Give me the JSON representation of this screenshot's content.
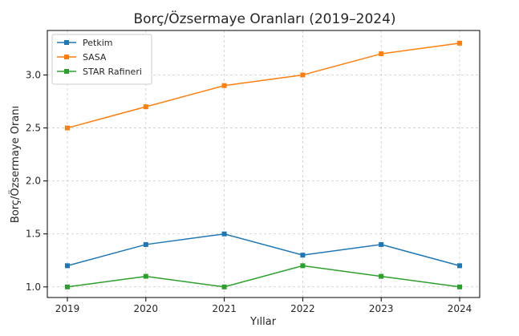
{
  "chart_data": {
    "type": "line",
    "title": "Borç/Özsermaye Oranları (2019–2024)",
    "xlabel": "Yıllar",
    "ylabel": "Borç/Özsermaye Oranı",
    "x": [
      2019,
      2020,
      2021,
      2022,
      2023,
      2024
    ],
    "ylim": [
      0.9,
      3.42
    ],
    "yticks": [
      1.0,
      1.5,
      2.0,
      2.5,
      3.0
    ],
    "grid": true,
    "legend_position": "top-left",
    "series": [
      {
        "name": "Petkim",
        "values": [
          1.2,
          1.4,
          1.5,
          1.3,
          1.4,
          1.2
        ],
        "color": "#1f77b4",
        "marker": "square"
      },
      {
        "name": "SASA",
        "values": [
          2.5,
          2.7,
          2.9,
          3.0,
          3.2,
          3.3
        ],
        "color": "#ff7f0e",
        "marker": "square"
      },
      {
        "name": "STAR Rafineri",
        "values": [
          1.0,
          1.1,
          1.0,
          1.2,
          1.1,
          1.0
        ],
        "color": "#2ca02c",
        "marker": "square"
      }
    ]
  }
}
